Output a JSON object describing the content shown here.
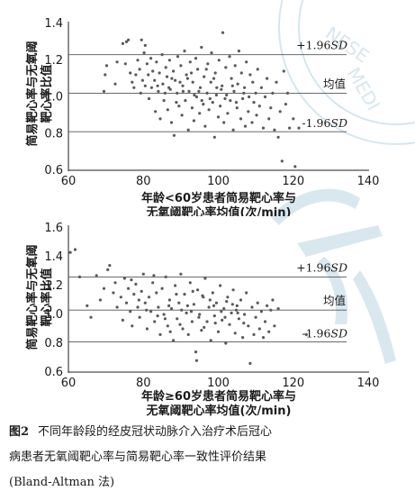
{
  "caption": {
    "number": "图2",
    "text_line1": "不同年龄段的经皮冠状动脉介入治疗术后冠心",
    "text_line2": "病患者无氧阈靶心率与简易靶心率一致性评价结果",
    "text_line3": "(Bland-Altman 法)"
  },
  "chart_data": [
    {
      "type": "scatter",
      "xlabel_line1": "年龄<60岁患者简易靶心率与",
      "xlabel_line2": "无氧阈靶心率均值(次/min)",
      "ylabel_line1": "简易靶心率与无氧阈",
      "ylabel_line2": "靶心率比值",
      "xlim": [
        60,
        140
      ],
      "ylim": [
        0.6,
        1.4
      ],
      "xticks": [
        "60",
        "80",
        "100",
        "120",
        "140"
      ],
      "yticks": [
        "0.6",
        "0.8",
        "1.0",
        "1.2",
        "1.4"
      ],
      "ref_lines": {
        "upper": {
          "value": 1.23,
          "label_prefix": "+1.96",
          "label_sd": "SD"
        },
        "mean": {
          "value": 1.02,
          "label": "均值"
        },
        "lower": {
          "value": 0.81,
          "label_prefix": "-1.96",
          "label_sd": "SD"
        }
      },
      "points": [
        [
          74.5,
          1.29
        ],
        [
          75.5,
          1.3
        ],
        [
          76.0,
          1.31
        ],
        [
          79.5,
          1.31
        ],
        [
          80.5,
          1.28
        ],
        [
          70.2,
          1.17
        ],
        [
          69.8,
          1.12
        ],
        [
          69.5,
          1.03
        ],
        [
          72.5,
          1.07
        ],
        [
          73.0,
          1.19
        ],
        [
          75.2,
          1.18
        ],
        [
          76.5,
          1.13
        ],
        [
          77.0,
          1.08
        ],
        [
          77.5,
          1.05
        ],
        [
          78.0,
          1.12
        ],
        [
          78.5,
          1.2
        ],
        [
          79.0,
          1.15
        ],
        [
          79.3,
          1.02
        ],
        [
          79.8,
          1.09
        ],
        [
          80.2,
          1.24
        ],
        [
          80.5,
          1.06
        ],
        [
          81.0,
          1.18
        ],
        [
          81.3,
          1.12
        ],
        [
          81.5,
          0.99
        ],
        [
          82.0,
          1.21
        ],
        [
          82.2,
          1.05
        ],
        [
          82.5,
          1.14
        ],
        [
          83.0,
          1.09
        ],
        [
          83.2,
          0.92
        ],
        [
          83.5,
          1.19
        ],
        [
          84.0,
          1.03
        ],
        [
          84.3,
          1.13
        ],
        [
          84.5,
          0.88
        ],
        [
          85.0,
          1.23
        ],
        [
          85.2,
          1.07
        ],
        [
          85.5,
          0.98
        ],
        [
          86.0,
          1.16
        ],
        [
          86.3,
          1.11
        ],
        [
          86.5,
          0.93
        ],
        [
          87.0,
          1.2
        ],
        [
          87.2,
          1.04
        ],
        [
          87.5,
          0.86
        ],
        [
          88.0,
          1.14
        ],
        [
          88.2,
          0.79
        ],
        [
          88.5,
          1.09
        ],
        [
          89.0,
          1.02
        ],
        [
          89.2,
          1.22
        ],
        [
          89.5,
          0.95
        ],
        [
          90.0,
          1.17
        ],
        [
          90.3,
          0.9
        ],
        [
          90.5,
          1.06
        ],
        [
          91.0,
          1.25
        ],
        [
          91.2,
          0.98
        ],
        [
          91.5,
          1.12
        ],
        [
          92.0,
          0.82
        ],
        [
          92.2,
          1.03
        ],
        [
          92.5,
          1.19
        ],
        [
          93.0,
          0.94
        ],
        [
          93.2,
          1.08
        ],
        [
          93.5,
          0.87
        ],
        [
          94.0,
          1.21
        ],
        [
          94.2,
          1.0
        ],
        [
          94.5,
          1.15
        ],
        [
          95.0,
          0.91
        ],
        [
          95.2,
          1.05
        ],
        [
          95.5,
          1.27
        ],
        [
          96.0,
          0.96
        ],
        [
          96.2,
          1.11
        ],
        [
          96.5,
          0.84
        ],
        [
          97.0,
          1.02
        ],
        [
          97.2,
          1.18
        ],
        [
          97.5,
          0.93
        ],
        [
          98.0,
          1.08
        ],
        [
          98.2,
          1.24
        ],
        [
          98.5,
          0.97
        ],
        [
          99.0,
          0.78
        ],
        [
          99.2,
          1.13
        ],
        [
          99.5,
          1.01
        ],
        [
          100.0,
          0.89
        ],
        [
          100.2,
          1.2
        ],
        [
          100.5,
          0.95
        ],
        [
          101.0,
          1.06
        ],
        [
          101.2,
          1.35
        ],
        [
          101.5,
          0.86
        ],
        [
          102.0,
          1.16
        ],
        [
          102.2,
          1.01
        ],
        [
          102.5,
          0.91
        ],
        [
          103.0,
          1.22
        ],
        [
          103.2,
          0.98
        ],
        [
          103.5,
          1.1
        ],
        [
          104.0,
          0.82
        ],
        [
          104.2,
          1.03
        ],
        [
          104.5,
          1.17
        ],
        [
          105.0,
          0.94
        ],
        [
          105.2,
          1.07
        ],
        [
          105.5,
          1.25
        ],
        [
          106.0,
          0.88
        ],
        [
          106.2,
          1.13
        ],
        [
          106.5,
          0.99
        ],
        [
          107.0,
          1.05
        ],
        [
          107.2,
          0.84
        ],
        [
          107.5,
          1.19
        ],
        [
          108.0,
          0.92
        ],
        [
          108.2,
          1.0
        ],
        [
          108.5,
          1.12
        ],
        [
          109.0,
          0.86
        ],
        [
          109.2,
          1.08
        ],
        [
          109.5,
          0.97
        ],
        [
          110.0,
          1.02
        ],
        [
          110.2,
          0.9
        ],
        [
          110.5,
          1.15
        ],
        [
          111.0,
          0.95
        ],
        [
          111.5,
          1.05
        ],
        [
          112.0,
          0.83
        ],
        [
          112.5,
          1.0
        ],
        [
          113.0,
          1.1
        ],
        [
          113.5,
          0.88
        ],
        [
          114.0,
          0.94
        ],
        [
          114.5,
          1.02
        ],
        [
          115.0,
          0.82
        ],
        [
          115.5,
          1.08
        ],
        [
          116.0,
          0.78
        ],
        [
          116.5,
          0.92
        ],
        [
          117.0,
          0.65
        ],
        [
          117.5,
          1.14
        ],
        [
          118.0,
          0.96
        ],
        [
          118.5,
          1.02
        ],
        [
          119.0,
          0.83
        ],
        [
          120.0,
          0.88
        ],
        [
          120.5,
          0.62
        ],
        [
          121.5,
          0.83
        ],
        [
          86.8,
          1.05
        ],
        [
          88.8,
          0.97
        ],
        [
          91.8,
          1.1
        ],
        [
          94.8,
          1.03
        ],
        [
          97.8,
          0.99
        ],
        [
          100.8,
          1.04
        ],
        [
          103.8,
          1.06
        ],
        [
          106.8,
          1.02
        ],
        [
          96.8,
          1.15
        ],
        [
          92.8,
          1.13
        ],
        [
          89.8,
          1.08
        ],
        [
          83.8,
          1.06
        ],
        [
          85.8,
          1.02
        ],
        [
          98.8,
          1.1
        ],
        [
          101.8,
          0.99
        ],
        [
          104.8,
          0.97
        ],
        [
          99.6,
          1.05
        ],
        [
          95.6,
          0.98
        ],
        [
          93.6,
          1.01
        ],
        [
          90.6,
          1.03
        ],
        [
          87.6,
          1.1
        ]
      ]
    },
    {
      "type": "scatter",
      "xlabel_line1": "年龄≥60岁患者简易靶心率与",
      "xlabel_line2": "无氧阈靶心率均值(次/min)",
      "ylabel_line1": "简易靶心率与无氧阈",
      "ylabel_line2": "靶心率比值",
      "xlim": [
        60,
        140
      ],
      "ylim": [
        0.6,
        1.6
      ],
      "xticks": [
        "60",
        "80",
        "100",
        "120",
        "140"
      ],
      "yticks": [
        "0.6",
        "0.8",
        "1.0",
        "1.2",
        "1.4",
        "1.6"
      ],
      "ref_lines": {
        "upper": {
          "value": 1.26,
          "label_prefix": "+1.96",
          "label_sd": "SD"
        },
        "mean": {
          "value": 1.03,
          "label": "均值"
        },
        "lower": {
          "value": 0.81,
          "label_prefix": "-1.96",
          "label_sd": "SD"
        }
      },
      "points": [
        [
          60.5,
          1.43
        ],
        [
          61.8,
          1.45
        ],
        [
          63.0,
          1.26
        ],
        [
          65.0,
          1.06
        ],
        [
          66.0,
          0.98
        ],
        [
          67.5,
          1.27
        ],
        [
          68.5,
          1.1
        ],
        [
          69.5,
          1.18
        ],
        [
          70.5,
          1.31
        ],
        [
          71.0,
          1.34
        ],
        [
          72.0,
          1.15
        ],
        [
          72.5,
          1.22
        ],
        [
          73.0,
          1.05
        ],
        [
          74.0,
          1.12
        ],
        [
          74.5,
          0.96
        ],
        [
          75.0,
          1.25
        ],
        [
          75.5,
          1.08
        ],
        [
          76.0,
          1.18
        ],
        [
          76.5,
          1.02
        ],
        [
          77.0,
          0.92
        ],
        [
          77.5,
          1.14
        ],
        [
          78.0,
          1.21
        ],
        [
          78.5,
          1.05
        ],
        [
          79.0,
          0.98
        ],
        [
          79.5,
          1.16
        ],
        [
          80.0,
          1.28
        ],
        [
          80.5,
          1.08
        ],
        [
          81.0,
          0.9
        ],
        [
          81.5,
          1.12
        ],
        [
          82.0,
          1.02
        ],
        [
          82.5,
          1.22
        ],
        [
          83.0,
          0.95
        ],
        [
          83.5,
          1.15
        ],
        [
          84.0,
          1.05
        ],
        [
          84.5,
          0.86
        ],
        [
          85.0,
          1.18
        ],
        [
          85.5,
          1.0
        ],
        [
          86.0,
          1.26
        ],
        [
          86.5,
          0.92
        ],
        [
          87.0,
          1.1
        ],
        [
          87.5,
          1.04
        ],
        [
          88.0,
          0.82
        ],
        [
          88.5,
          1.2
        ],
        [
          89.0,
          0.97
        ],
        [
          89.5,
          1.08
        ],
        [
          90.0,
          1.28
        ],
        [
          90.5,
          0.9
        ],
        [
          91.0,
          1.14
        ],
        [
          91.5,
          1.01
        ],
        [
          92.0,
          0.86
        ],
        [
          92.5,
          1.22
        ],
        [
          93.0,
          0.95
        ],
        [
          93.5,
          1.07
        ],
        [
          94.0,
          0.74
        ],
        [
          94.5,
          1.17
        ],
        [
          95.0,
          1.0
        ],
        [
          95.5,
          0.89
        ],
        [
          96.0,
          1.12
        ],
        [
          96.5,
          1.25
        ],
        [
          97.0,
          0.95
        ],
        [
          97.5,
          1.05
        ],
        [
          98.0,
          0.82
        ],
        [
          98.5,
          1.15
        ],
        [
          99.0,
          0.99
        ],
        [
          99.5,
          1.08
        ],
        [
          100.0,
          0.88
        ],
        [
          100.5,
          1.2
        ],
        [
          101.0,
          0.96
        ],
        [
          101.5,
          1.04
        ],
        [
          102.0,
          0.8
        ],
        [
          102.5,
          1.12
        ],
        [
          103.0,
          0.93
        ],
        [
          103.5,
          1.01
        ],
        [
          104.0,
          1.17
        ],
        [
          104.5,
          0.87
        ],
        [
          105.0,
          1.06
        ],
        [
          105.5,
          0.97
        ],
        [
          106.0,
          1.1
        ],
        [
          106.5,
          0.84
        ],
        [
          107.0,
          1.0
        ],
        [
          107.5,
          1.15
        ],
        [
          108.0,
          0.92
        ],
        [
          108.5,
          0.66
        ],
        [
          109.0,
          1.05
        ],
        [
          109.5,
          0.86
        ],
        [
          110.0,
          0.98
        ],
        [
          110.5,
          1.08
        ],
        [
          111.0,
          0.9
        ],
        [
          111.5,
          1.02
        ],
        [
          112.0,
          0.84
        ],
        [
          112.5,
          0.95
        ],
        [
          113.0,
          1.06
        ],
        [
          113.5,
          0.88
        ],
        [
          114.0,
          1.03
        ],
        [
          114.5,
          1.1
        ],
        [
          115.0,
          0.92
        ],
        [
          116.0,
          1.04
        ],
        [
          123.5,
          0.86
        ],
        [
          94.2,
          0.68
        ],
        [
          85.8,
          0.97
        ],
        [
          88.8,
          1.14
        ],
        [
          91.8,
          1.06
        ],
        [
          94.8,
          0.98
        ],
        [
          97.8,
          1.1
        ],
        [
          100.8,
          1.02
        ],
        [
          103.8,
          1.07
        ],
        [
          106.8,
          0.94
        ],
        [
          80.8,
          1.03
        ],
        [
          83.8,
          0.99
        ],
        [
          86.8,
          1.06
        ],
        [
          89.8,
          0.93
        ],
        [
          92.8,
          1.02
        ],
        [
          95.8,
          1.13
        ],
        [
          98.8,
          1.06
        ],
        [
          101.8,
          0.98
        ],
        [
          104.8,
          1.03
        ],
        [
          78.8,
          1.1
        ],
        [
          76.8,
          1.24
        ],
        [
          82.8,
          1.27
        ],
        [
          96.2,
          0.91
        ],
        [
          99.2,
          0.94
        ],
        [
          102.2,
          1.09
        ],
        [
          87.2,
          0.88
        ],
        [
          90.2,
          1.03
        ],
        [
          93.2,
          1.16
        ],
        [
          105.2,
          1.01
        ]
      ]
    }
  ]
}
